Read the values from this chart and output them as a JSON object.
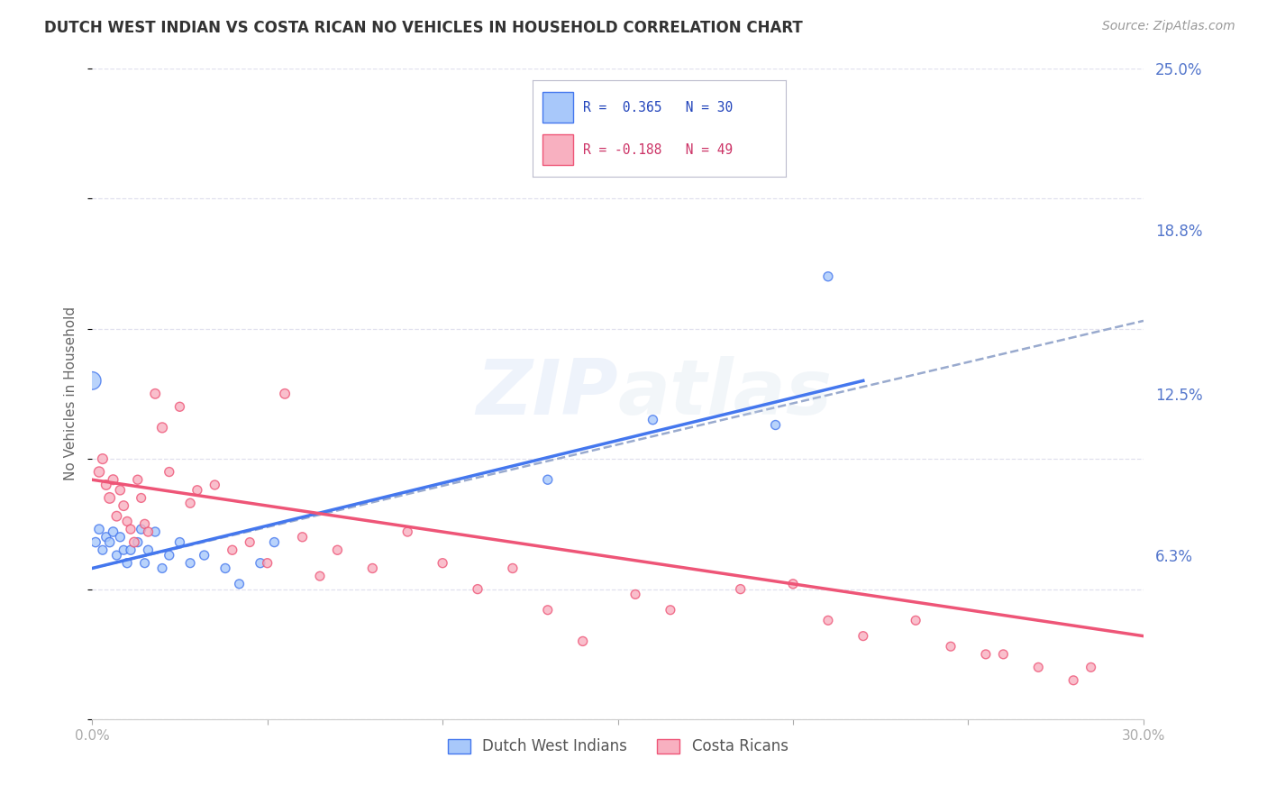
{
  "title": "DUTCH WEST INDIAN VS COSTA RICAN NO VEHICLES IN HOUSEHOLD CORRELATION CHART",
  "source": "Source: ZipAtlas.com",
  "ylabel": "No Vehicles in Household",
  "x_min": 0.0,
  "x_max": 0.3,
  "y_min": 0.0,
  "y_max": 0.25,
  "y_tick_labels_right": [
    "6.3%",
    "12.5%",
    "18.8%",
    "25.0%"
  ],
  "y_tick_positions_right": [
    0.063,
    0.125,
    0.188,
    0.25
  ],
  "grid_color": "#e0e0ee",
  "background_color": "#ffffff",
  "watermark": "ZIPatlas",
  "series1_color": "#a8c8fa",
  "series2_color": "#f8b0c0",
  "trendline1_solid_color": "#4477ee",
  "trendline1_dash_color": "#99aace",
  "trendline2_color": "#ee5577",
  "dutch_west_indians_x": [
    0.001,
    0.002,
    0.003,
    0.004,
    0.005,
    0.006,
    0.007,
    0.008,
    0.009,
    0.01,
    0.011,
    0.013,
    0.014,
    0.015,
    0.016,
    0.018,
    0.02,
    0.022,
    0.025,
    0.028,
    0.032,
    0.038,
    0.042,
    0.048,
    0.052,
    0.13,
    0.16,
    0.195,
    0.21,
    0.0
  ],
  "dutch_west_indians_y": [
    0.068,
    0.073,
    0.065,
    0.07,
    0.068,
    0.072,
    0.063,
    0.07,
    0.065,
    0.06,
    0.065,
    0.068,
    0.073,
    0.06,
    0.065,
    0.072,
    0.058,
    0.063,
    0.068,
    0.06,
    0.063,
    0.058,
    0.052,
    0.06,
    0.068,
    0.092,
    0.115,
    0.113,
    0.17,
    0.13
  ],
  "dutch_west_indians_s": [
    55,
    55,
    50,
    52,
    55,
    55,
    50,
    52,
    50,
    52,
    52,
    52,
    52,
    50,
    52,
    52,
    50,
    52,
    52,
    50,
    52,
    52,
    50,
    52,
    52,
    52,
    52,
    52,
    52,
    200
  ],
  "costa_ricans_x": [
    0.002,
    0.003,
    0.004,
    0.005,
    0.006,
    0.007,
    0.008,
    0.009,
    0.01,
    0.011,
    0.012,
    0.013,
    0.014,
    0.015,
    0.016,
    0.018,
    0.02,
    0.022,
    0.025,
    0.028,
    0.03,
    0.035,
    0.04,
    0.045,
    0.05,
    0.055,
    0.06,
    0.065,
    0.07,
    0.08,
    0.09,
    0.1,
    0.11,
    0.12,
    0.13,
    0.14,
    0.155,
    0.165,
    0.185,
    0.2,
    0.21,
    0.22,
    0.235,
    0.245,
    0.255,
    0.26,
    0.27,
    0.28,
    0.285
  ],
  "costa_ricans_y": [
    0.095,
    0.1,
    0.09,
    0.085,
    0.092,
    0.078,
    0.088,
    0.082,
    0.076,
    0.073,
    0.068,
    0.092,
    0.085,
    0.075,
    0.072,
    0.125,
    0.112,
    0.095,
    0.12,
    0.083,
    0.088,
    0.09,
    0.065,
    0.068,
    0.06,
    0.125,
    0.07,
    0.055,
    0.065,
    0.058,
    0.072,
    0.06,
    0.05,
    0.058,
    0.042,
    0.03,
    0.048,
    0.042,
    0.05,
    0.052,
    0.038,
    0.032,
    0.038,
    0.028,
    0.025,
    0.025,
    0.02,
    0.015,
    0.02
  ],
  "costa_ricans_s": [
    65,
    60,
    58,
    70,
    60,
    58,
    55,
    58,
    52,
    52,
    58,
    52,
    50,
    52,
    52,
    58,
    62,
    52,
    52,
    52,
    52,
    52,
    52,
    50,
    52,
    58,
    52,
    50,
    52,
    52,
    52,
    52,
    52,
    52,
    50,
    52,
    50,
    50,
    52,
    52,
    50,
    50,
    50,
    50,
    50,
    50,
    50,
    50,
    50
  ],
  "trendline1_x0": 0.0,
  "trendline1_y0": 0.058,
  "trendline1_x1": 0.22,
  "trendline1_y1": 0.13,
  "trendline1_dash_x1": 0.3,
  "trendline1_dash_y1": 0.153,
  "trendline2_x0": 0.0,
  "trendline2_y0": 0.092,
  "trendline2_x1": 0.3,
  "trendline2_y1": 0.032
}
